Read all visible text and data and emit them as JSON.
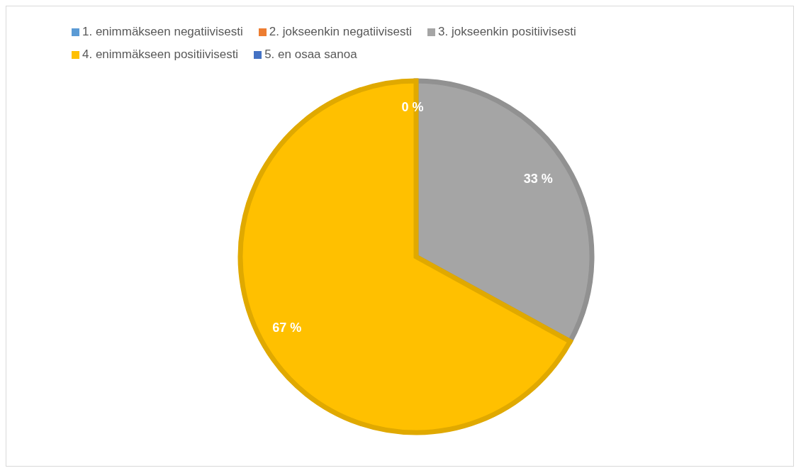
{
  "chart_data": {
    "type": "pie",
    "categories": [
      "1. enimmäkseen negatiivisesti",
      "2. jokseenkin negatiivisesti",
      "3. jokseenkin positiivisesti",
      "4. enimmäkseen positiivisesti",
      "5. en osaa sanoa"
    ],
    "values": [
      0,
      0,
      33,
      67,
      0
    ],
    "colors": [
      "#5b9bd5",
      "#ed7d31",
      "#a5a5a5",
      "#ffc000",
      "#4472c4"
    ],
    "value_labels": [
      "0 %",
      null,
      "33 %",
      "67 %",
      null
    ],
    "legend": "top"
  }
}
